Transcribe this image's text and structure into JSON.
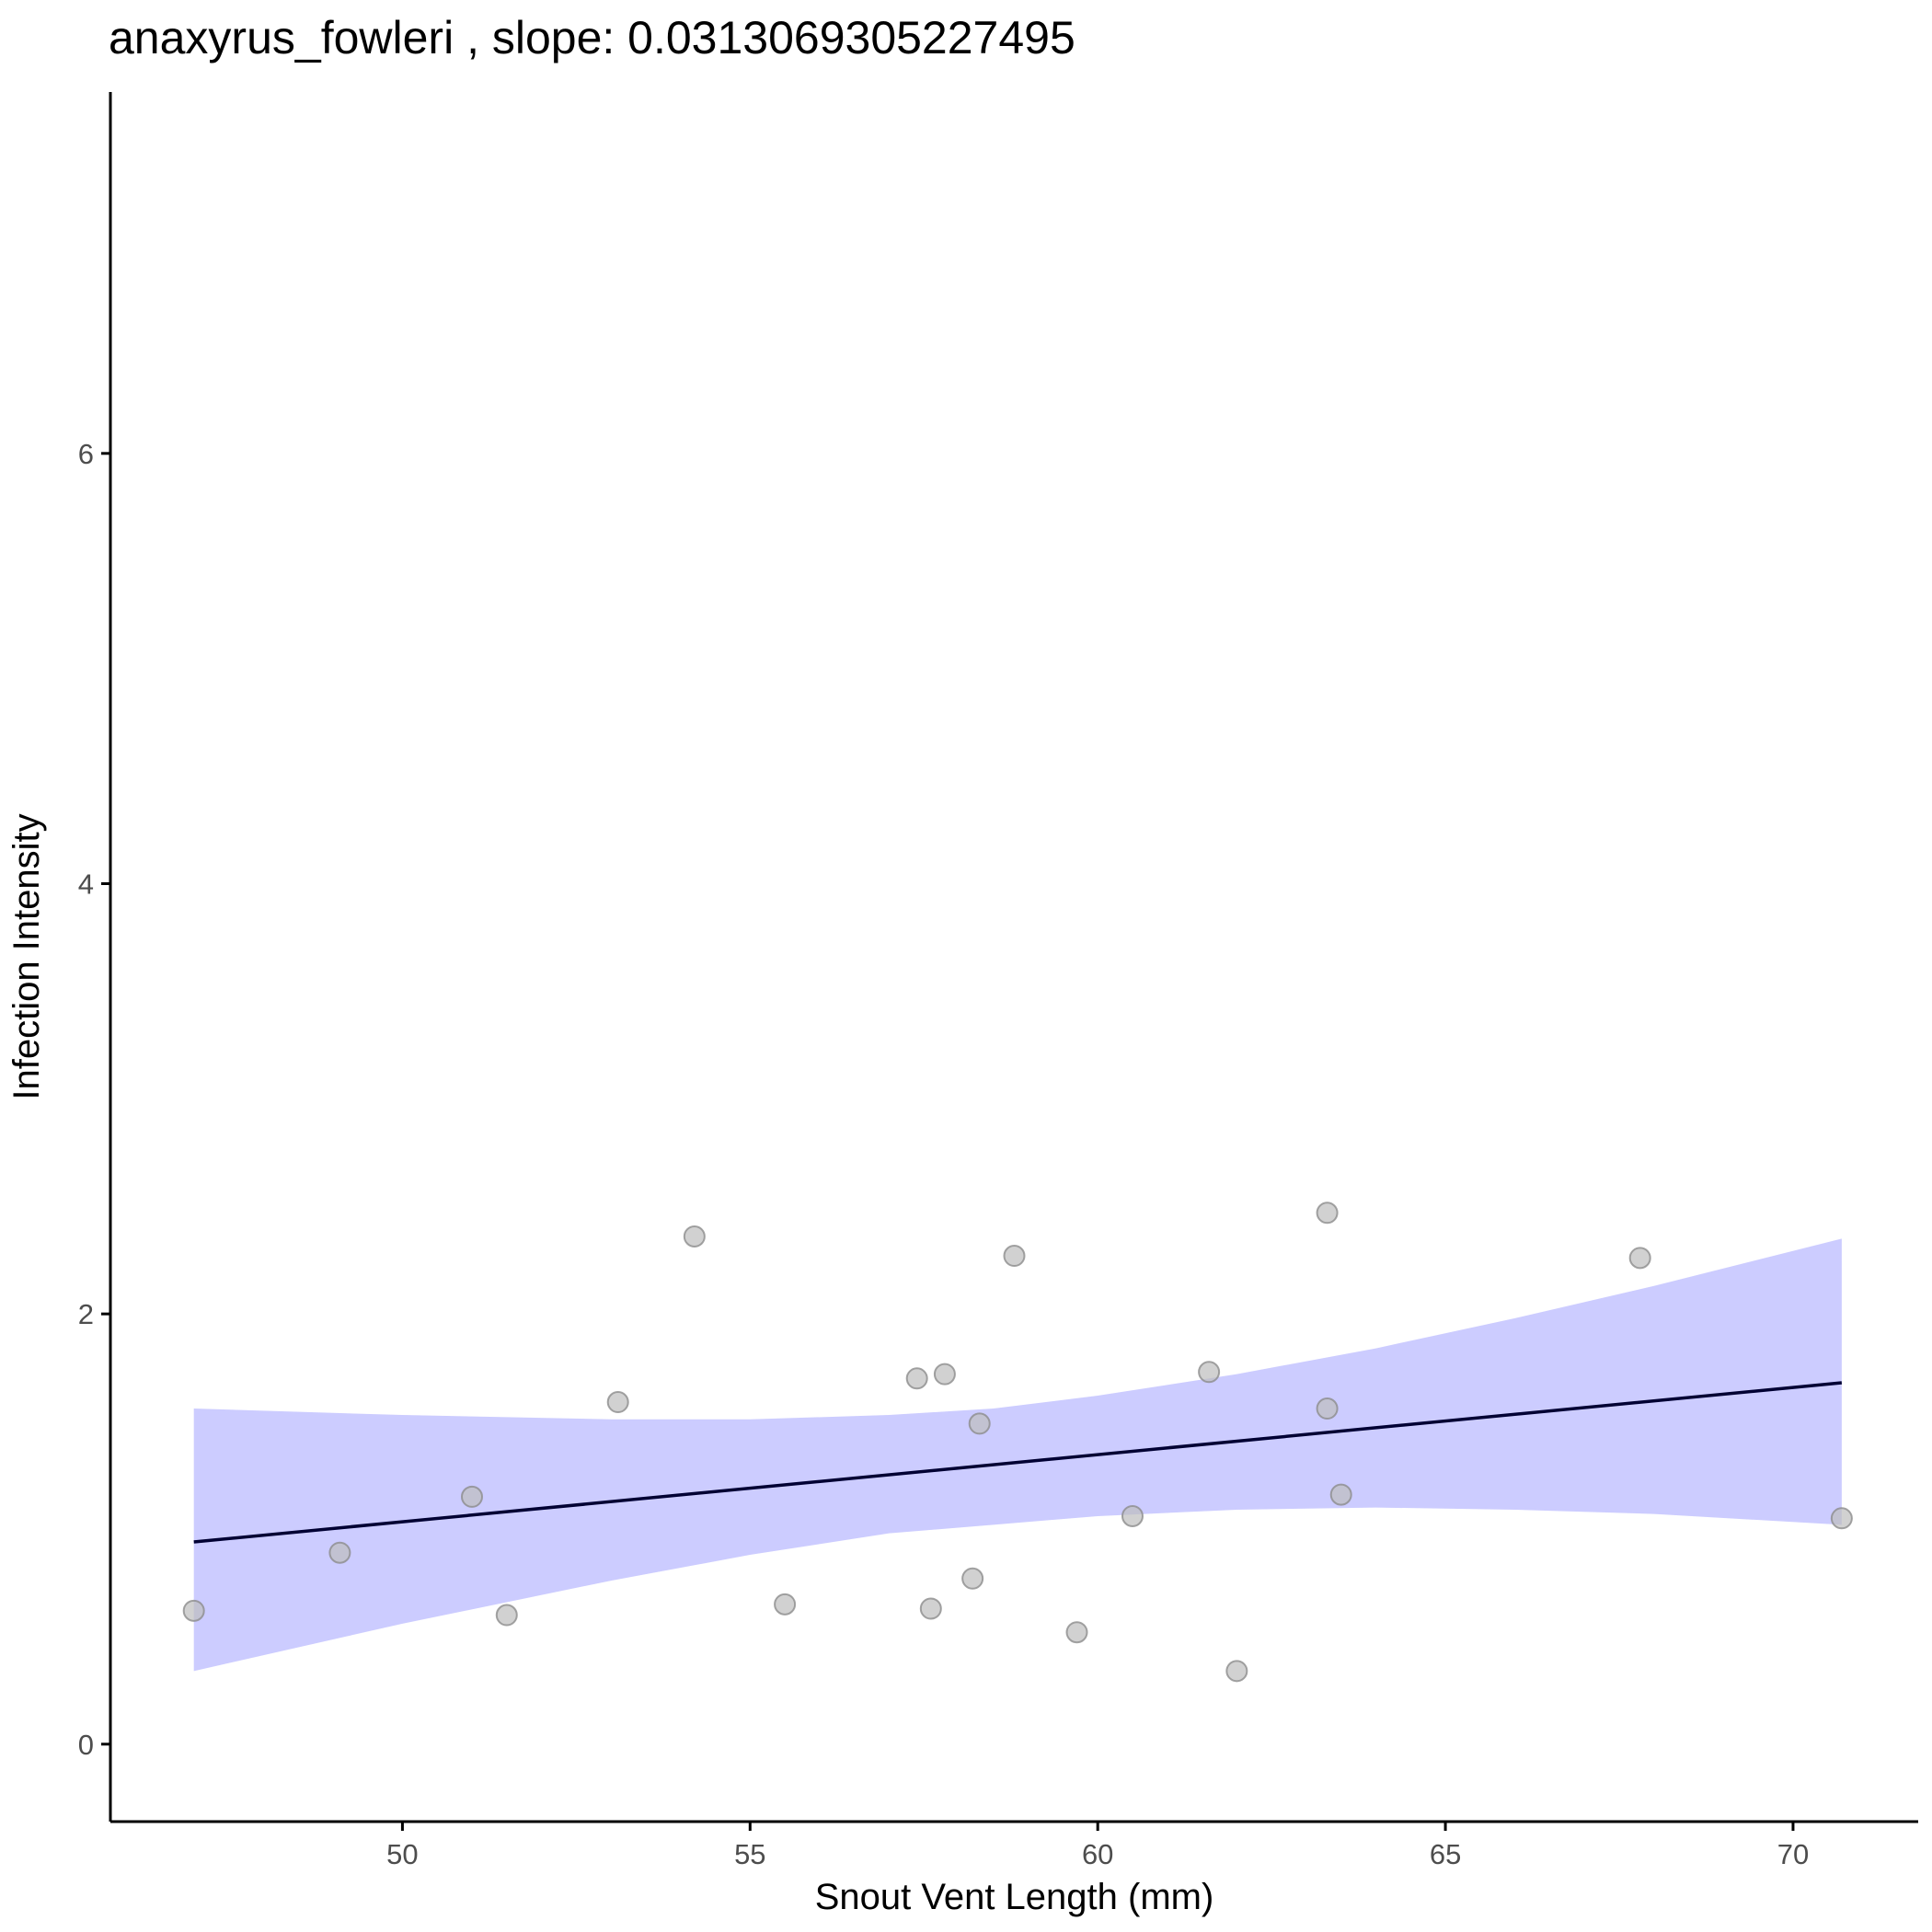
{
  "chart_data": {
    "type": "scatter",
    "title": "anaxyrus_fowleri , slope: 0.0313069305227495",
    "xlabel": "Snout Vent Length (mm)",
    "ylabel": "Infection Intensity",
    "xlim": [
      45.8,
      71.8
    ],
    "ylim": [
      -0.36,
      7.68
    ],
    "xticks": [
      50,
      55,
      60,
      65,
      70
    ],
    "yticks": [
      0,
      2,
      4,
      6
    ],
    "grid": false,
    "legend": "none",
    "points": [
      {
        "x": 47.0,
        "y": 0.62
      },
      {
        "x": 49.1,
        "y": 0.89
      },
      {
        "x": 51.0,
        "y": 1.15
      },
      {
        "x": 51.5,
        "y": 0.6
      },
      {
        "x": 53.1,
        "y": 1.59
      },
      {
        "x": 54.2,
        "y": 2.36
      },
      {
        "x": 55.5,
        "y": 0.65
      },
      {
        "x": 57.4,
        "y": 1.7
      },
      {
        "x": 57.6,
        "y": 0.63
      },
      {
        "x": 57.8,
        "y": 1.72
      },
      {
        "x": 58.2,
        "y": 0.77
      },
      {
        "x": 58.3,
        "y": 1.49
      },
      {
        "x": 58.8,
        "y": 2.27
      },
      {
        "x": 59.7,
        "y": 0.52
      },
      {
        "x": 60.5,
        "y": 1.06
      },
      {
        "x": 61.6,
        "y": 1.73
      },
      {
        "x": 62.0,
        "y": 0.34
      },
      {
        "x": 63.3,
        "y": 2.47
      },
      {
        "x": 63.3,
        "y": 1.56
      },
      {
        "x": 63.5,
        "y": 1.16
      },
      {
        "x": 67.8,
        "y": 2.26
      },
      {
        "x": 70.7,
        "y": 1.05
      }
    ],
    "fit_line": {
      "x": [
        47.0,
        70.7
      ],
      "y": [
        0.94,
        1.68
      ]
    },
    "confidence_band": {
      "x": [
        47.0,
        50.0,
        53.0,
        55.0,
        57.0,
        58.5,
        60.0,
        62.0,
        64.0,
        66.0,
        68.0,
        70.7
      ],
      "upper": [
        1.56,
        1.53,
        1.51,
        1.51,
        1.53,
        1.56,
        1.62,
        1.72,
        1.84,
        1.98,
        2.13,
        2.35
      ],
      "lower": [
        0.34,
        0.56,
        0.76,
        0.88,
        0.98,
        1.02,
        1.06,
        1.09,
        1.1,
        1.09,
        1.07,
        1.02
      ]
    },
    "colors": {
      "point_fill": "#bdbdbd",
      "point_stroke": "#8c8c8c",
      "band_fill": "#ccccff",
      "fit_line": "#000033",
      "axis": "#000000",
      "tick_text": "#4d4d4d"
    }
  }
}
